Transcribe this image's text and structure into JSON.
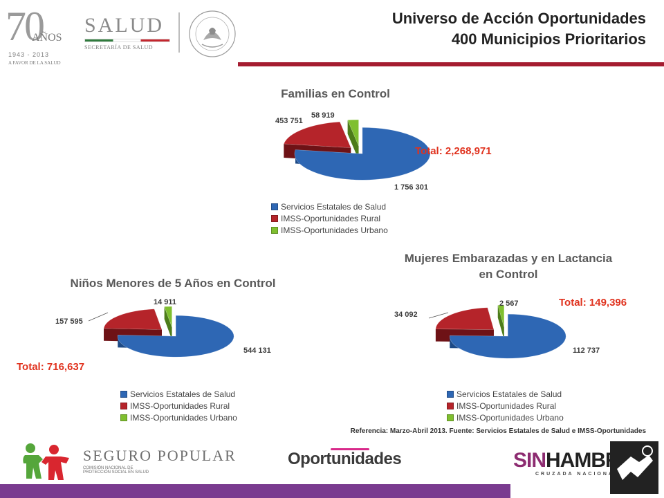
{
  "header": {
    "logo_70": {
      "number": "70",
      "word": "AÑOS",
      "years": "1943 - 2013",
      "tagline": "A FAVOR DE LA SALUD"
    },
    "salud_logo": {
      "name": "SALUD",
      "subtitle": "SECRETARÍA DE SALUD"
    },
    "seal_text": "ESTADOS UNIDOS MEXICANOS",
    "title_line1": "Universo de Acción Oportunidades",
    "title_line2": "400 Municipios Prioritarios"
  },
  "colors": {
    "title_rule": "#a51c30",
    "slice_blue": "#2e67b4",
    "slice_red": "#b5242a",
    "slice_green": "#7fbf2f",
    "total_text": "#e0321e",
    "bottom_bar": "#7a3b8f"
  },
  "chart_data": [
    {
      "type": "pie",
      "title": "Familias en Control",
      "total_label": "Total: 2,268,971",
      "categories": [
        "Servicios Estatales de Salud",
        "IMSS-Oportunidades Rural",
        "IMSS-Oportunidades Urbano"
      ],
      "values": [
        1756301,
        453751,
        58919
      ],
      "data_labels": [
        "1 756 301",
        "453 751",
        "58 919"
      ],
      "style": "3d-exploded",
      "legend_position": "bottom"
    },
    {
      "type": "pie",
      "title": "Niños Menores de 5 Años en Control",
      "total_label": "Total: 716,637",
      "categories": [
        "Servicios Estatales de Salud",
        "IMSS-Oportunidades Rural",
        "IMSS-Oportunidades Urbano"
      ],
      "values": [
        544131,
        157595,
        14911
      ],
      "data_labels": [
        "544 131",
        "157 595",
        "14 911"
      ],
      "style": "3d-exploded",
      "legend_position": "bottom"
    },
    {
      "type": "pie",
      "title_line1": "Mujeres Embarazadas y en Lactancia",
      "title_line2": "en Control",
      "total_label": "Total: 149,396",
      "categories": [
        "Servicios Estatales de Salud",
        "IMSS-Oportunidades Rural",
        "IMSS-Oportunidades Urbano"
      ],
      "values": [
        112737,
        34092,
        2567
      ],
      "data_labels": [
        "112 737",
        "34 092",
        "2 567"
      ],
      "style": "3d-exploded",
      "legend_position": "bottom"
    }
  ],
  "reference_text": "Referencia: Marzo-Abril 2013. Fuente: Servicios Estatales de Salud e IMSS-Oportunidades",
  "footer": {
    "seguro_popular": "SEGURO POPULAR",
    "seguro_popular_sub1": "COMISIÓN NACIONAL DE",
    "seguro_popular_sub2": "PROTECCIÓN SOCIAL EN SALUD",
    "oportunidades": "Oportunidades",
    "sinhambre_a": "SIN",
    "sinhambre_b": "HAMBRE",
    "cruzada": "CRUZADA NACIONAL"
  }
}
